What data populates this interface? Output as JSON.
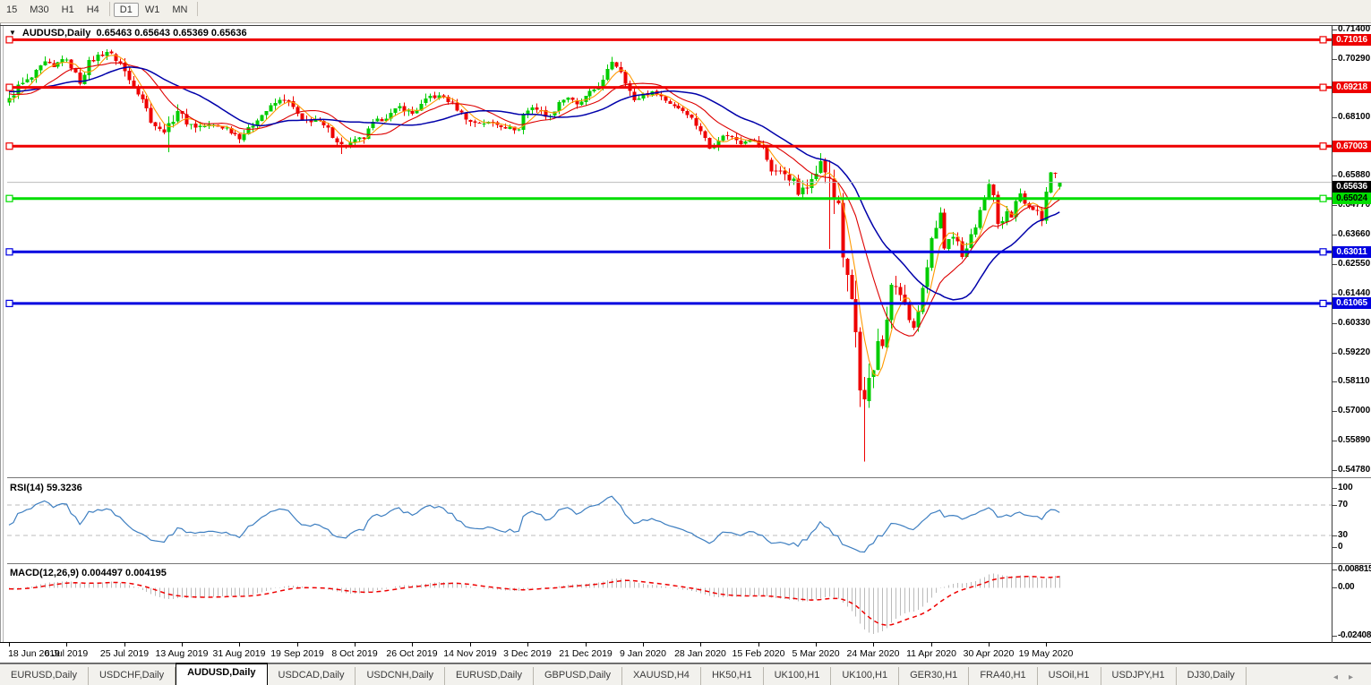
{
  "toolbar": {
    "timeframes": [
      {
        "label": "15",
        "active": false
      },
      {
        "label": "M30",
        "active": false
      },
      {
        "label": "H1",
        "active": false
      },
      {
        "label": "H4",
        "active": false
      },
      {
        "label": "D1",
        "active": true
      },
      {
        "label": "W1",
        "active": false
      },
      {
        "label": "MN",
        "active": false
      }
    ]
  },
  "title": {
    "text": "AUDUSD,Daily  0.65463 0.65643 0.65369 0.65636",
    "symbol": "AUDUSD",
    "period": "Daily",
    "open": "0.65463",
    "high": "0.65643",
    "low": "0.65369",
    "close": "0.65636"
  },
  "chart_data": {
    "type": "candlestick",
    "symbol": "AUDUSD",
    "timeframe": "Daily",
    "bar_count": 238,
    "bars_per_x_label": 13,
    "x_labels": [
      "18 Jun 2019",
      "6 Jul 2019",
      "25 Jul 2019",
      "13 Aug 2019",
      "31 Aug 2019",
      "19 Sep 2019",
      "8 Oct 2019",
      "26 Oct 2019",
      "14 Nov 2019",
      "3 Dec 2019",
      "21 Dec 2019",
      "9 Jan 2020",
      "28 Jan 2020",
      "15 Feb 2020",
      "5 Mar 2020",
      "24 Mar 2020",
      "11 Apr 2020",
      "30 Apr 2020",
      "19 May 2020"
    ],
    "y_ticks": [
      "0.71400",
      "0.70290",
      "0.68100",
      "0.65880",
      "0.64770",
      "0.63660",
      "0.62550",
      "0.61440",
      "0.60330",
      "0.59220",
      "0.58110",
      "0.57000",
      "0.55890",
      "0.54780"
    ],
    "y_axis": {
      "price_top": 0.714,
      "price_bottom": 0.5478
    },
    "candle_colors": {
      "up": "#00CC00",
      "down": "#EE0000"
    },
    "horizontal_lines": [
      {
        "label": "0.71016",
        "value": 0.71016,
        "color": "#EE0000",
        "text_color": "#FFFFFF"
      },
      {
        "label": "0.69218",
        "value": 0.69218,
        "color": "#EE0000",
        "text_color": "#FFFFFF"
      },
      {
        "label": "0.67003",
        "value": 0.67003,
        "color": "#EE0000",
        "text_color": "#FFFFFF"
      },
      {
        "label": "0.65024",
        "value": 0.65024,
        "color": "#00DD00",
        "text_color": "#000000"
      },
      {
        "label": "0.63011",
        "value": 0.63011,
        "color": "#0000E0",
        "text_color": "#FFFFFF"
      },
      {
        "label": "0.61065",
        "value": 0.61065,
        "color": "#0000E0",
        "text_color": "#FFFFFF"
      }
    ],
    "current_price": {
      "label": "0.65636",
      "value": 0.65636,
      "line_color": "#BBBBBB",
      "badge_bg": "#000000",
      "badge_text": "#FFFFFF"
    },
    "moving_averages": [
      {
        "name": "fast",
        "period": 5,
        "color": "#FF9900"
      },
      {
        "name": "medium",
        "period": 13,
        "color": "#DD0000"
      },
      {
        "name": "slow",
        "period": 26,
        "color": "#0000AA"
      }
    ],
    "price_path": [
      [
        -60,
        0.7,
        0.005
      ],
      [
        -50,
        0.6945,
        0.005
      ],
      [
        -40,
        0.69,
        0.005
      ],
      [
        -30,
        0.6868,
        0.005
      ],
      [
        -20,
        0.6915,
        0.005
      ],
      [
        -10,
        0.6938,
        0.005
      ],
      [
        -4,
        0.6865,
        0.005
      ],
      [
        0,
        0.6875,
        0.0045
      ],
      [
        2,
        0.6925,
        0.0045
      ],
      [
        5,
        0.6958,
        0.0045
      ],
      [
        8,
        0.7013,
        0.0045
      ],
      [
        10,
        0.6993,
        0.0045
      ],
      [
        12,
        0.7035,
        0.0045
      ],
      [
        14,
        0.7,
        0.004
      ],
      [
        16,
        0.6942,
        0.004
      ],
      [
        18,
        0.7015,
        0.0045
      ],
      [
        20,
        0.704,
        0.0045
      ],
      [
        22,
        0.7058,
        0.0045
      ],
      [
        25,
        0.7012,
        0.004
      ],
      [
        27,
        0.695,
        0.004
      ],
      [
        30,
        0.688,
        0.004
      ],
      [
        32,
        0.68,
        0.005
      ],
      [
        34,
        0.6758,
        0.005
      ],
      [
        36,
        0.6772,
        0.006
      ],
      [
        38,
        0.6838,
        0.005
      ],
      [
        40,
        0.679,
        0.0045
      ],
      [
        42,
        0.6775,
        0.004
      ],
      [
        46,
        0.6778,
        0.0035
      ],
      [
        49,
        0.6768,
        0.0035
      ],
      [
        52,
        0.6735,
        0.004
      ],
      [
        54,
        0.6762,
        0.004
      ],
      [
        56,
        0.6805,
        0.004
      ],
      [
        60,
        0.6862,
        0.004
      ],
      [
        62,
        0.688,
        0.004
      ],
      [
        64,
        0.6845,
        0.004
      ],
      [
        66,
        0.6792,
        0.004
      ],
      [
        69,
        0.68,
        0.0035
      ],
      [
        72,
        0.6762,
        0.004
      ],
      [
        75,
        0.6702,
        0.005
      ],
      [
        78,
        0.6718,
        0.004
      ],
      [
        80,
        0.6732,
        0.004
      ],
      [
        82,
        0.6785,
        0.004
      ],
      [
        86,
        0.6822,
        0.0035
      ],
      [
        88,
        0.6848,
        0.0035
      ],
      [
        91,
        0.6822,
        0.0035
      ],
      [
        95,
        0.6888,
        0.004
      ],
      [
        98,
        0.6885,
        0.0035
      ],
      [
        100,
        0.6858,
        0.0035
      ],
      [
        104,
        0.679,
        0.0035
      ],
      [
        109,
        0.6788,
        0.003
      ],
      [
        112,
        0.6772,
        0.003
      ],
      [
        115,
        0.6762,
        0.003
      ],
      [
        116,
        0.6818,
        0.0035
      ],
      [
        118,
        0.685,
        0.0035
      ],
      [
        122,
        0.6808,
        0.0035
      ],
      [
        124,
        0.6868,
        0.0035
      ],
      [
        126,
        0.6885,
        0.0035
      ],
      [
        128,
        0.6852,
        0.0035
      ],
      [
        131,
        0.69,
        0.0035
      ],
      [
        134,
        0.6945,
        0.0035
      ],
      [
        136,
        0.7022,
        0.004
      ],
      [
        138,
        0.6985,
        0.004
      ],
      [
        141,
        0.6868,
        0.004
      ],
      [
        143,
        0.6898,
        0.0035
      ],
      [
        146,
        0.6902,
        0.003
      ],
      [
        148,
        0.6872,
        0.003
      ],
      [
        151,
        0.6845,
        0.003
      ],
      [
        153,
        0.6825,
        0.0035
      ],
      [
        156,
        0.676,
        0.004
      ],
      [
        158,
        0.6692,
        0.0045
      ],
      [
        160,
        0.673,
        0.004
      ],
      [
        162,
        0.6742,
        0.0035
      ],
      [
        165,
        0.6715,
        0.0035
      ],
      [
        167,
        0.6732,
        0.0035
      ],
      [
        170,
        0.669,
        0.004
      ],
      [
        172,
        0.661,
        0.005
      ],
      [
        175,
        0.6598,
        0.005
      ],
      [
        177,
        0.6565,
        0.006
      ],
      [
        178,
        0.6522,
        0.007
      ],
      [
        180,
        0.6542,
        0.007
      ],
      [
        181,
        0.6592,
        0.007
      ],
      [
        183,
        0.6636,
        0.007
      ],
      [
        185,
        0.6582,
        0.012
      ],
      [
        186,
        0.65,
        0.011
      ],
      [
        187,
        0.649,
        0.011
      ],
      [
        188,
        0.6292,
        0.013
      ],
      [
        189,
        0.6188,
        0.013
      ],
      [
        190,
        0.6122,
        0.013
      ],
      [
        191,
        0.5992,
        0.014
      ],
      [
        192,
        0.5772,
        0.015
      ],
      [
        193,
        0.5745,
        0.015
      ],
      [
        194,
        0.5798,
        0.013
      ],
      [
        195,
        0.5832,
        0.012
      ],
      [
        196,
        0.5962,
        0.012
      ],
      [
        197,
        0.5952,
        0.011
      ],
      [
        198,
        0.6062,
        0.01
      ],
      [
        199,
        0.6165,
        0.01
      ],
      [
        200,
        0.617,
        0.009
      ],
      [
        201,
        0.6135,
        0.008
      ],
      [
        202,
        0.6092,
        0.008
      ],
      [
        203,
        0.6055,
        0.008
      ],
      [
        204,
        0.5998,
        0.008
      ],
      [
        205,
        0.6085,
        0.008
      ],
      [
        206,
        0.6165,
        0.007
      ],
      [
        207,
        0.6235,
        0.007
      ],
      [
        208,
        0.6338,
        0.007
      ],
      [
        209,
        0.6382,
        0.006
      ],
      [
        210,
        0.644,
        0.006
      ],
      [
        211,
        0.6322,
        0.006
      ],
      [
        212,
        0.6362,
        0.0055
      ],
      [
        213,
        0.6365,
        0.005
      ],
      [
        214,
        0.6335,
        0.005
      ],
      [
        215,
        0.6292,
        0.005
      ],
      [
        216,
        0.6322,
        0.005
      ],
      [
        217,
        0.6368,
        0.005
      ],
      [
        218,
        0.6392,
        0.005
      ],
      [
        219,
        0.6465,
        0.005
      ],
      [
        220,
        0.6492,
        0.005
      ],
      [
        221,
        0.6548,
        0.005
      ],
      [
        222,
        0.6512,
        0.005
      ],
      [
        223,
        0.6418,
        0.0055
      ],
      [
        224,
        0.6428,
        0.005
      ],
      [
        225,
        0.6455,
        0.0045
      ],
      [
        226,
        0.6422,
        0.0045
      ],
      [
        227,
        0.6495,
        0.0045
      ],
      [
        228,
        0.653,
        0.0045
      ],
      [
        229,
        0.649,
        0.004
      ],
      [
        230,
        0.6465,
        0.004
      ],
      [
        231,
        0.6452,
        0.004
      ],
      [
        232,
        0.6462,
        0.004
      ],
      [
        233,
        0.6418,
        0.0045
      ],
      [
        234,
        0.6528,
        0.0045
      ],
      [
        235,
        0.6612,
        0.0045
      ],
      [
        236,
        0.6598,
        0.004
      ],
      [
        237,
        0.65636,
        0.003
      ]
    ],
    "overrides": [
      {
        "i": 36,
        "l": 0.6677
      },
      {
        "i": 75,
        "l": 0.667
      },
      {
        "i": 185,
        "o": 0.6585,
        "h": 0.6646,
        "l": 0.6313,
        "c": 0.6582
      },
      {
        "i": 193,
        "o": 0.578,
        "h": 0.583,
        "l": 0.551,
        "c": 0.5745
      },
      {
        "i": 237,
        "o": 0.65463,
        "h": 0.65643,
        "l": 0.65369,
        "c": 0.65636
      }
    ],
    "indicators": {
      "rsi": {
        "label_text": "RSI(14) 59.3236",
        "period": 14,
        "current_value": 59.3236,
        "levels": [
          70,
          30
        ],
        "scale_labels": [
          "100",
          "70",
          "30",
          "0"
        ],
        "line_color": "#3E7FC1",
        "level_color": "#BBBBBB"
      },
      "macd": {
        "label_text": "MACD(12,26,9) 0.004497 0.004195",
        "fast": 12,
        "slow": 26,
        "signal": 9,
        "macd_value": 0.004497,
        "signal_value": 0.004195,
        "scale_labels": [
          "0.008815",
          "0.00",
          "-0.02408"
        ],
        "scale_max": 0.008815,
        "scale_min": -0.02408,
        "histogram_color": "#BBBBBB",
        "signal_color": "#EE0000"
      }
    }
  },
  "tabs": {
    "items": [
      {
        "label": "EURUSD,Daily",
        "active": false
      },
      {
        "label": "USDCHF,Daily",
        "active": false
      },
      {
        "label": "AUDUSD,Daily",
        "active": true
      },
      {
        "label": "USDCAD,Daily",
        "active": false
      },
      {
        "label": "USDCNH,Daily",
        "active": false
      },
      {
        "label": "EURUSD,Daily",
        "active": false
      },
      {
        "label": "GBPUSD,Daily",
        "active": false
      },
      {
        "label": "XAUUSD,H4",
        "active": false
      },
      {
        "label": "HK50,H1",
        "active": false
      },
      {
        "label": "UK100,H1",
        "active": false
      },
      {
        "label": "UK100,H1",
        "active": false
      },
      {
        "label": "GER30,H1",
        "active": false
      },
      {
        "label": "FRA40,H1",
        "active": false
      },
      {
        "label": "USOil,H1",
        "active": false
      },
      {
        "label": "USDJPY,H1",
        "active": false
      },
      {
        "label": "DJ30,Daily",
        "active": false
      }
    ],
    "nav_left": "◂",
    "nav_right": "▸"
  }
}
